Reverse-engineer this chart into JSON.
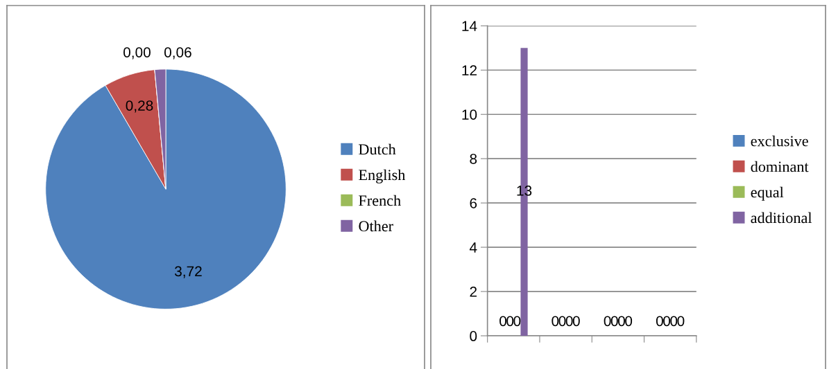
{
  "chart_data": [
    {
      "type": "pie",
      "categories": [
        "Dutch",
        "English",
        "French",
        "Other"
      ],
      "values": [
        3.72,
        0.28,
        0.0,
        0.06
      ],
      "colors": [
        "#4f81bd",
        "#c0504d",
        "#9bbb59",
        "#8064a2"
      ],
      "value_labels": [
        "3,72",
        "0,28",
        "0,00",
        "0,06"
      ],
      "legend": "right"
    },
    {
      "type": "bar",
      "categories": [
        null,
        null,
        null,
        null
      ],
      "series": [
        {
          "name": "exclusive",
          "color": "#4f81bd",
          "values": [
            0,
            0,
            0,
            0
          ],
          "value_labels": [
            "0",
            "0",
            "0",
            "0"
          ]
        },
        {
          "name": "dominant",
          "color": "#c0504d",
          "values": [
            0,
            0,
            0,
            0
          ],
          "value_labels": [
            "0",
            "0",
            "0",
            "0"
          ]
        },
        {
          "name": "equal",
          "color": "#9bbb59",
          "values": [
            0,
            0,
            0,
            0
          ],
          "value_labels": [
            "0",
            "0",
            "0",
            "0"
          ]
        },
        {
          "name": "additional",
          "color": "#8064a2",
          "values": [
            13,
            0,
            0,
            0
          ],
          "value_labels": [
            "13",
            "0",
            "0",
            "0"
          ]
        }
      ],
      "ylim": [
        0,
        14
      ],
      "yticks": [
        0,
        2,
        4,
        6,
        8,
        10,
        12,
        14
      ],
      "grid": "y",
      "legend": "right"
    }
  ]
}
